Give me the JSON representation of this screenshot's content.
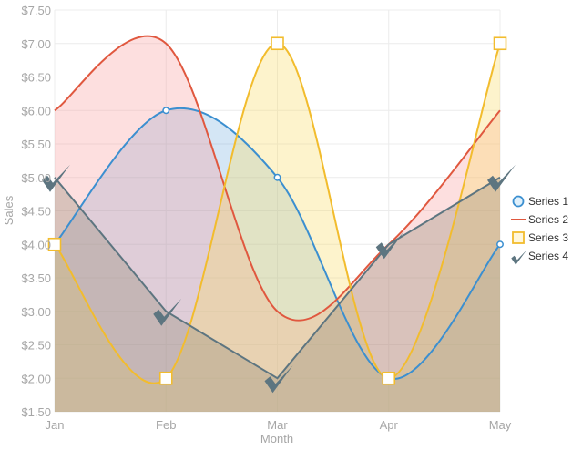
{
  "chart_data": {
    "type": "area",
    "xlabel": "Month",
    "ylabel": "Sales",
    "categories": [
      "Jan",
      "Feb",
      "Mar",
      "Apr",
      "May"
    ],
    "ylim": [
      1.5,
      7.5
    ],
    "yticks": [
      1.5,
      2.0,
      2.5,
      3.0,
      3.5,
      4.0,
      4.5,
      5.0,
      5.5,
      6.0,
      6.5,
      7.0,
      7.5
    ],
    "ytick_labels": [
      "$1.50",
      "$2.00",
      "$2.50",
      "$3.00",
      "$3.50",
      "$4.00",
      "$4.50",
      "$5.00",
      "$5.50",
      "$6.00",
      "$6.50",
      "$7.00",
      "$7.50"
    ],
    "grid": true,
    "legend_position": "right",
    "series": [
      {
        "name": "Series 1",
        "values": [
          4,
          6,
          5,
          2,
          4
        ],
        "color": "#3b8fd0",
        "fill": "rgba(59,143,208,0.22)",
        "marker": "circle",
        "curve": "spline"
      },
      {
        "name": "Series 2",
        "values": [
          6,
          7,
          3,
          4,
          6
        ],
        "color": "#e0583f",
        "fill": "rgba(250,150,150,0.30)",
        "marker": "none",
        "curve": "spline"
      },
      {
        "name": "Series 3",
        "values": [
          4,
          2,
          7,
          2,
          7
        ],
        "color": "#f2bc2d",
        "fill": "rgba(250,220,110,0.35)",
        "marker": "square",
        "curve": "spline"
      },
      {
        "name": "Series 4",
        "values": [
          5,
          3,
          2,
          4,
          5
        ],
        "color": "#5d7580",
        "fill": "rgba(150,140,120,0.35)",
        "marker": "check",
        "curve": "linear"
      }
    ]
  }
}
